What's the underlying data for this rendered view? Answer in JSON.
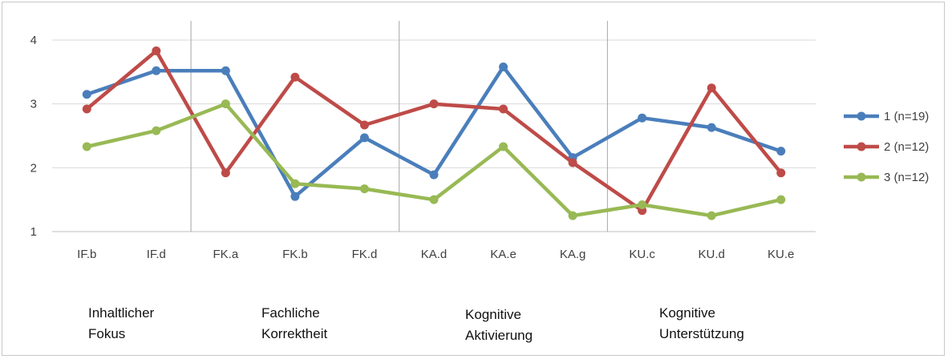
{
  "chart_data": {
    "type": "line",
    "categories": [
      "IF.b",
      "IF.d",
      "FK.a",
      "FK.b",
      "FK.d",
      "KA.d",
      "KA.e",
      "KA.g",
      "KU.c",
      "KU.d",
      "KU.e"
    ],
    "ylim": [
      1,
      4
    ],
    "yticks": [
      "1",
      "2",
      "3",
      "4"
    ],
    "grid": true,
    "legend_position": "right",
    "series": [
      {
        "name": "1 (n=19)",
        "color": "#4a7ebb",
        "values": [
          3.15,
          3.52,
          3.52,
          1.55,
          2.47,
          1.89,
          3.58,
          2.16,
          2.78,
          2.63,
          2.26
        ]
      },
      {
        "name": "2 (n=12)",
        "color": "#be4b48",
        "values": [
          2.92,
          3.83,
          1.92,
          3.42,
          2.67,
          3.0,
          2.92,
          2.08,
          1.33,
          3.25,
          1.92
        ]
      },
      {
        "name": "3 (n=12)",
        "color": "#98b954",
        "values": [
          2.33,
          2.58,
          3.0,
          1.75,
          1.67,
          1.5,
          2.33,
          1.25,
          1.42,
          1.25,
          1.5
        ]
      }
    ],
    "group_separators_after": [
      "IF.d",
      "FK.d",
      "KA.g"
    ],
    "groups": [
      {
        "line1": "Inhaltlicher",
        "line2": "Fokus"
      },
      {
        "line1": "Fachliche",
        "line2": "Korrektheit"
      },
      {
        "line1": "Kognitive",
        "line2": "Aktivierung"
      },
      {
        "line1": "Kognitive",
        "line2": "Unterstützung"
      }
    ]
  }
}
